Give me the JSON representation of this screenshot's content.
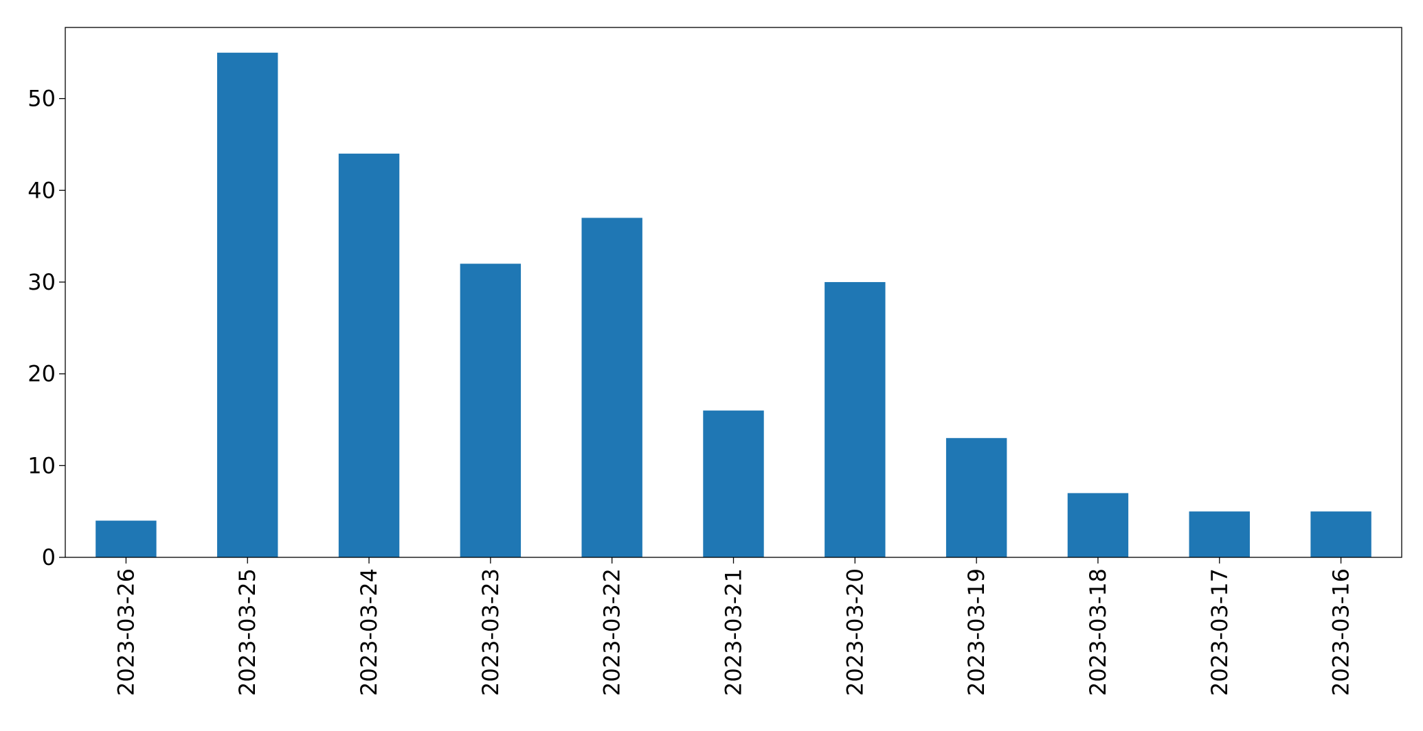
{
  "chart_data": {
    "type": "bar",
    "title": "",
    "xlabel": "",
    "ylabel": "",
    "categories": [
      "2023-03-26",
      "2023-03-25",
      "2023-03-24",
      "2023-03-23",
      "2023-03-22",
      "2023-03-21",
      "2023-03-20",
      "2023-03-19",
      "2023-03-18",
      "2023-03-17",
      "2023-03-16"
    ],
    "values": [
      4,
      55,
      44,
      32,
      37,
      16,
      30,
      13,
      7,
      5,
      5
    ],
    "ylim": [
      0,
      57.75
    ],
    "yticks": [
      0,
      10,
      20,
      30,
      40,
      50
    ],
    "grid": false,
    "legend": "none",
    "colors": {
      "bar": "#1f77b4",
      "axis": "#000000",
      "background": "#ffffff"
    }
  }
}
